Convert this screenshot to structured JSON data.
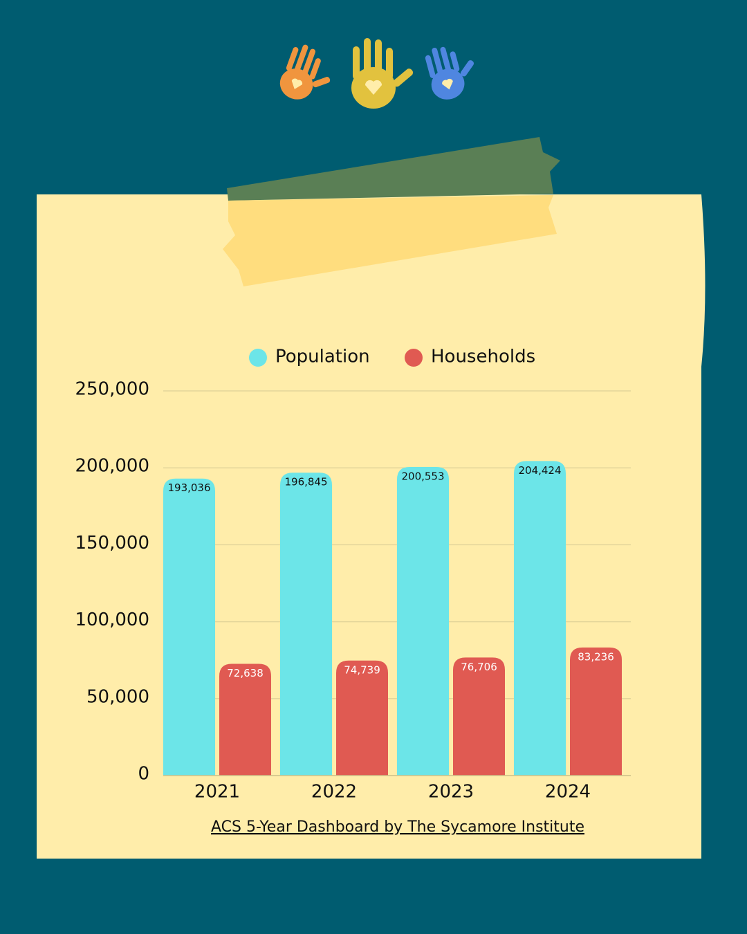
{
  "chart_data": {
    "type": "bar",
    "categories": [
      "2021",
      "2022",
      "2023",
      "2024"
    ],
    "series": [
      {
        "name": "Population",
        "color": "#6ce5e8",
        "values": [
          193036,
          196845,
          200553,
          204424
        ],
        "value_labels": [
          "193,036",
          "196,845",
          "200,553",
          "204,424"
        ]
      },
      {
        "name": "Households",
        "color": "#e05a52",
        "values": [
          72638,
          74739,
          76706,
          83236
        ],
        "value_labels": [
          "72,638",
          "74,739",
          "76,706",
          "83,236"
        ]
      }
    ],
    "ylim": [
      0,
      250000
    ],
    "yticks": [
      0,
      {
        "value": 50000,
        "label": "50,000"
      },
      {
        "value": 100000,
        "label": "100,000"
      },
      {
        "value": 150000,
        "label": "150,000"
      },
      {
        "value": 200000,
        "label": "200,000"
      },
      {
        "value": 250000,
        "label": "250,000"
      }
    ],
    "grid": true,
    "legend": "top",
    "source": "ACS 5-Year Dashboard by The Sycamore Institute"
  }
}
